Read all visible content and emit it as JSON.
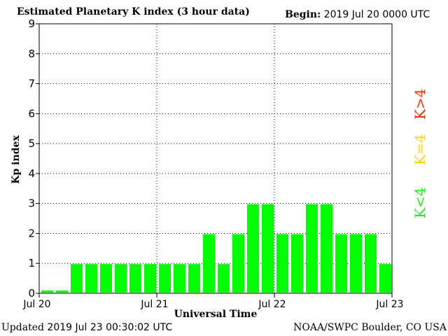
{
  "header": {
    "title": "Estimated Planetary K index (3 hour data)",
    "begin_label": "Begin:",
    "begin_value": "2019 Jul 20 0000 UTC"
  },
  "footer": {
    "updated_label": "Updated",
    "updated_value": "2019 Jul 23 00:30:02 UTC",
    "credit": "NOAA/SWPC Boulder, CO USA"
  },
  "legend": {
    "high": "K>4",
    "equal": "K=4",
    "low": "K<4",
    "colors": {
      "high": "#ff2a00",
      "equal": "#ffd21a",
      "low": "#22ee1a"
    }
  },
  "chart_data": {
    "type": "bar",
    "ylabel": "Kp index",
    "xlabel": "Universal Time",
    "ylim": [
      0,
      9
    ],
    "yticks": [
      "0",
      "1",
      "2",
      "3",
      "4",
      "5",
      "6",
      "7",
      "8",
      "9"
    ],
    "xticks": [
      "Jul 20",
      "Jul 21",
      "Jul 22",
      "Jul 23"
    ],
    "grid": true,
    "bar_color": "#00ff00",
    "values": [
      0,
      0,
      1,
      1,
      1,
      1,
      1,
      1,
      1,
      1,
      1,
      2,
      1,
      2,
      3,
      3,
      2,
      2,
      3,
      3,
      2,
      2,
      2,
      1
    ]
  }
}
